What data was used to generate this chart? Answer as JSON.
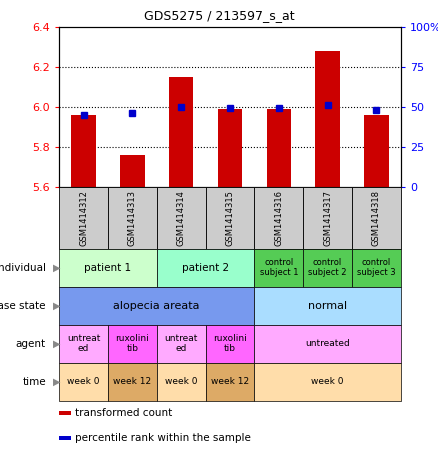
{
  "title": "GDS5275 / 213597_s_at",
  "samples": [
    "GSM1414312",
    "GSM1414313",
    "GSM1414314",
    "GSM1414315",
    "GSM1414316",
    "GSM1414317",
    "GSM1414318"
  ],
  "transformed_count": [
    5.96,
    5.76,
    6.15,
    5.99,
    5.99,
    6.28,
    5.96
  ],
  "percentile_rank": [
    45,
    46,
    50,
    49,
    49,
    51,
    48
  ],
  "ylim_left": [
    5.6,
    6.4
  ],
  "ylim_right": [
    0,
    100
  ],
  "yticks_left": [
    5.6,
    5.8,
    6.0,
    6.2,
    6.4
  ],
  "yticks_right": [
    0,
    25,
    50,
    75,
    100
  ],
  "bar_color": "#cc0000",
  "dot_color": "#0000cc",
  "sample_box_color": "#cccccc",
  "annotation_rows": [
    {
      "label": "individual",
      "cells": [
        {
          "text": "patient 1",
          "span": 2,
          "color": "#ccffcc",
          "fontsize": 7.5
        },
        {
          "text": "patient 2",
          "span": 2,
          "color": "#99ffcc",
          "fontsize": 7.5
        },
        {
          "text": "control\nsubject 1",
          "span": 1,
          "color": "#55cc55",
          "fontsize": 6
        },
        {
          "text": "control\nsubject 2",
          "span": 1,
          "color": "#55cc55",
          "fontsize": 6
        },
        {
          "text": "control\nsubject 3",
          "span": 1,
          "color": "#55cc55",
          "fontsize": 6
        }
      ]
    },
    {
      "label": "disease state",
      "cells": [
        {
          "text": "alopecia areata",
          "span": 4,
          "color": "#7799ee",
          "fontsize": 8
        },
        {
          "text": "normal",
          "span": 3,
          "color": "#aaddff",
          "fontsize": 8
        }
      ]
    },
    {
      "label": "agent",
      "cells": [
        {
          "text": "untreat\ned",
          "span": 1,
          "color": "#ffaaff",
          "fontsize": 6.5
        },
        {
          "text": "ruxolini\ntib",
          "span": 1,
          "color": "#ff66ff",
          "fontsize": 6.5
        },
        {
          "text": "untreat\ned",
          "span": 1,
          "color": "#ffaaff",
          "fontsize": 6.5
        },
        {
          "text": "ruxolini\ntib",
          "span": 1,
          "color": "#ff66ff",
          "fontsize": 6.5
        },
        {
          "text": "untreated",
          "span": 3,
          "color": "#ffaaff",
          "fontsize": 6.5
        }
      ]
    },
    {
      "label": "time",
      "cells": [
        {
          "text": "week 0",
          "span": 1,
          "color": "#ffddaa",
          "fontsize": 6.5
        },
        {
          "text": "week 12",
          "span": 1,
          "color": "#ddaa66",
          "fontsize": 6.5
        },
        {
          "text": "week 0",
          "span": 1,
          "color": "#ffddaa",
          "fontsize": 6.5
        },
        {
          "text": "week 12",
          "span": 1,
          "color": "#ddaa66",
          "fontsize": 6.5
        },
        {
          "text": "week 0",
          "span": 3,
          "color": "#ffddaa",
          "fontsize": 6.5
        }
      ]
    }
  ],
  "legend": [
    {
      "color": "#cc0000",
      "label": "transformed count"
    },
    {
      "color": "#0000cc",
      "label": "percentile rank within the sample"
    }
  ]
}
